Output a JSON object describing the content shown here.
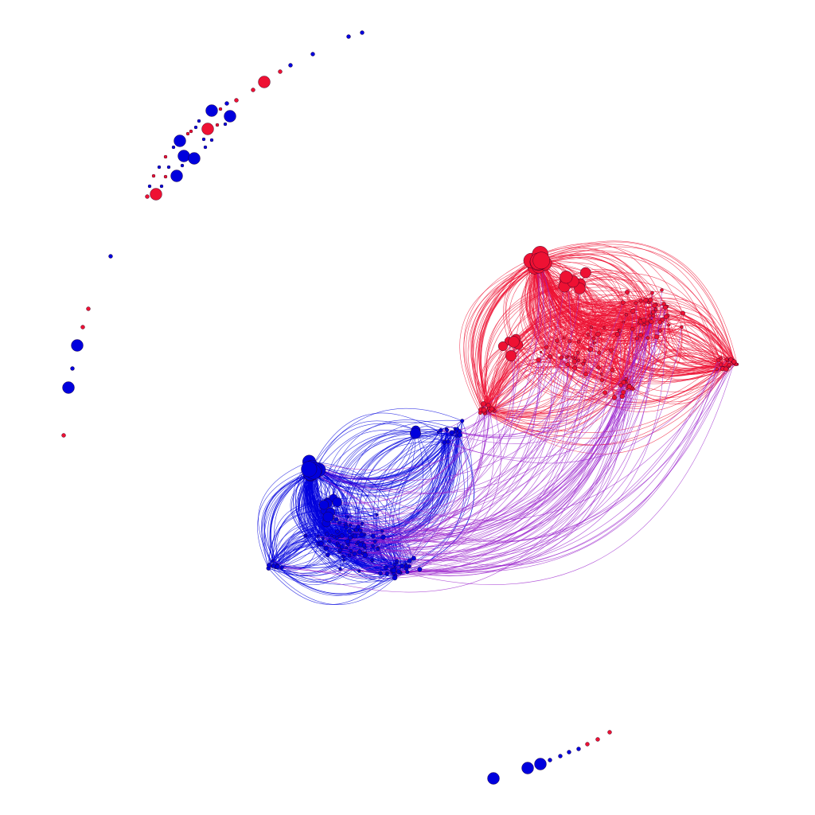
{
  "groups": [
    {
      "color": "#ee1133"
    },
    {
      "color": "#0000dd"
    }
  ],
  "bridge_color": "#9922cc"
}
